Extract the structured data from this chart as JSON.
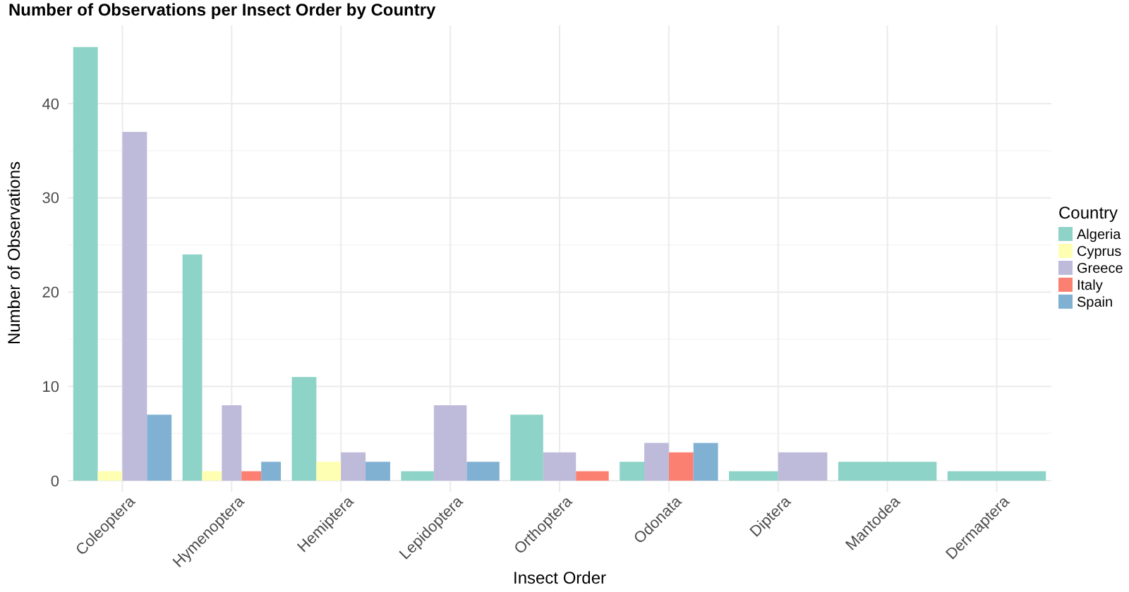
{
  "chart_data": {
    "type": "bar",
    "title": "Number of Observations per Insect Order by Country",
    "xlabel": "Insect Order",
    "ylabel": "Number of Observations",
    "legend_title": "Country",
    "legend": "right",
    "grid": true,
    "categories": [
      "Coleoptera",
      "Hymenoptera",
      "Hemiptera",
      "Lepidoptera",
      "Orthoptera",
      "Odonata",
      "Diptera",
      "Mantodea",
      "Dermaptera"
    ],
    "ylim": [
      0,
      48.3
    ],
    "yticks": [
      0,
      10,
      20,
      30,
      40
    ],
    "series": [
      {
        "name": "Algeria",
        "color": "#8dd3c7",
        "values": [
          46,
          24,
          11,
          1,
          7,
          2,
          1,
          2,
          1
        ]
      },
      {
        "name": "Cyprus",
        "color": "#ffffb3",
        "values": [
          1,
          1,
          2,
          null,
          null,
          null,
          null,
          null,
          null
        ]
      },
      {
        "name": "Greece",
        "color": "#bebada",
        "values": [
          37,
          8,
          3,
          8,
          3,
          4,
          3,
          null,
          null
        ]
      },
      {
        "name": "Italy",
        "color": "#fb8072",
        "values": [
          null,
          1,
          null,
          null,
          1,
          3,
          null,
          null,
          null
        ]
      },
      {
        "name": "Spain",
        "color": "#80b1d3",
        "values": [
          7,
          2,
          2,
          2,
          null,
          4,
          null,
          null,
          null
        ]
      }
    ]
  }
}
